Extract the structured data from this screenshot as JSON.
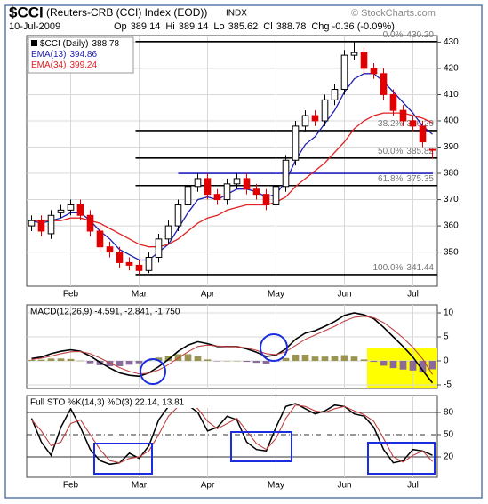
{
  "chart_data": [
    {
      "type": "candlestick",
      "title": "$CCI",
      "subtitle": "(Reuters-CRB (CCI) Index (EOD))",
      "exchange": "INDX",
      "source": "© StockCharts.com",
      "date": "10-Jul-2009",
      "ohlc_labels": [
        "Op",
        "Hi",
        "Lo",
        "Cl"
      ],
      "change": "Chg -0.36 (-0.09%)",
      "legend_name": "$CCI (Daily)",
      "categories": [
        null,
        null,
        null,
        null,
        "Feb",
        null,
        null,
        null,
        null,
        null,
        null,
        "Mar",
        null,
        null,
        null,
        null,
        null,
        null,
        "Apr",
        null,
        null,
        null,
        null,
        null,
        null,
        "May",
        null,
        null,
        null,
        null,
        null,
        null,
        "Jun",
        null,
        null,
        null,
        null,
        null,
        null,
        "Jul",
        null,
        null
      ],
      "open": [
        360,
        362,
        357,
        365,
        366,
        368,
        364,
        358,
        352,
        350,
        346,
        345,
        343,
        348,
        355,
        360,
        368,
        375,
        378,
        372,
        370,
        376,
        378,
        374,
        372,
        368,
        375,
        385,
        398,
        402,
        400,
        408,
        412,
        425,
        426,
        420,
        418,
        410,
        404,
        400,
        398,
        389.14
      ],
      "high": [
        364,
        364,
        366,
        368,
        370,
        370,
        366,
        360,
        354,
        352,
        348,
        347,
        350,
        357,
        362,
        370,
        377,
        380,
        380,
        374,
        378,
        380,
        380,
        376,
        374,
        377,
        387,
        400,
        404,
        404,
        410,
        414,
        427,
        430.2,
        428,
        422,
        420,
        412,
        406,
        402,
        400,
        389.14
      ],
      "low": [
        358,
        356,
        355,
        363,
        364,
        362,
        356,
        350,
        348,
        344,
        343,
        341.44,
        342,
        346,
        353,
        358,
        366,
        373,
        370,
        368,
        368,
        374,
        372,
        370,
        366,
        366,
        373,
        383,
        396,
        398,
        398,
        406,
        410,
        423,
        418,
        416,
        408,
        402,
        398,
        396,
        390,
        385.62
      ],
      "close": [
        362,
        358,
        364,
        366,
        368,
        364,
        358,
        352,
        350,
        346,
        345,
        343,
        348,
        355,
        360,
        368,
        375,
        378,
        372,
        370,
        376,
        378,
        374,
        372,
        368,
        375,
        385,
        398,
        402,
        400,
        408,
        412,
        425,
        426,
        420,
        418,
        410,
        404,
        400,
        398,
        392,
        388.78
      ],
      "up_color": "#000000",
      "down_color": "#e00000",
      "series": [
        {
          "name": "EMA(13)",
          "color": "#1f1fb0",
          "values": [
            362,
            361,
            362,
            363,
            365,
            365,
            362,
            358,
            355,
            351,
            349,
            347,
            347,
            350,
            353,
            359,
            365,
            370,
            371,
            370,
            372,
            374,
            374,
            373,
            371,
            372,
            377,
            385,
            391,
            394,
            399,
            404,
            411,
            416,
            418,
            418,
            415,
            411,
            407,
            403,
            398,
            394.86
          ]
        },
        {
          "name": "EMA(34)",
          "color": "#e02020",
          "values": [
            362,
            362,
            362,
            362,
            363,
            363,
            362,
            361,
            359,
            357,
            355,
            353,
            352,
            352,
            353,
            355,
            358,
            361,
            363,
            364,
            366,
            367,
            368,
            368,
            368,
            369,
            371,
            375,
            378,
            381,
            384,
            388,
            392,
            397,
            400,
            402,
            403,
            403,
            403,
            402,
            401,
            399.24
          ]
        }
      ],
      "fib_levels": [
        {
          "name": "0.0%",
          "value": 430.2,
          "label": "430.20"
        },
        {
          "name": "38.2%",
          "value": 396.29
        },
        {
          "name": "50.0%",
          "value": 385.82
        },
        {
          "name": "61.8%",
          "value": 375.35
        },
        {
          "name": "100.0%",
          "value": 341.44
        }
      ],
      "support_line": 380,
      "support_color": "#2020c0",
      "ylim": [
        337,
        432.5
      ],
      "yticks": [
        350,
        360,
        370,
        380,
        390,
        400,
        410,
        420,
        430
      ],
      "grid": true
    },
    {
      "type": "macd",
      "title": "MACD(12,26,9) -4.591, -2.841, -1.750",
      "series": [
        {
          "color": "#000000",
          "values": [
            0.5,
            0.8,
            1.5,
            2.0,
            2.3,
            2.0,
            1.0,
            -0.3,
            -1.5,
            -2.5,
            -3.0,
            -3.2,
            -2.5,
            -1.2,
            0.3,
            2.0,
            3.3,
            4.0,
            3.6,
            3.0,
            3.0,
            3.0,
            2.5,
            1.8,
            0.9,
            1.2,
            2.5,
            4.5,
            5.8,
            6.3,
            7.2,
            8.2,
            9.5,
            10.0,
            9.6,
            8.8,
            7.0,
            5.0,
            3.0,
            0.8,
            -2.0,
            -4.591
          ]
        },
        {
          "color": "#c04040",
          "values": [
            0.3,
            0.55,
            1.0,
            1.5,
            1.9,
            1.95,
            1.5,
            0.6,
            -0.4,
            -1.4,
            -2.2,
            -2.7,
            -2.6,
            -1.9,
            -0.8,
            0.6,
            1.9,
            3.0,
            3.3,
            3.1,
            3.0,
            3.0,
            2.7,
            2.2,
            1.5,
            1.3,
            1.9,
            3.2,
            4.5,
            5.4,
            6.3,
            7.2,
            8.3,
            9.1,
            9.3,
            9.0,
            8.0,
            6.5,
            4.8,
            2.8,
            0.4,
            -2.841
          ]
        }
      ],
      "histogram": {
        "color": "#9a9450",
        "negative_color": "#8a6a9a",
        "values": [
          0.2,
          0.25,
          0.5,
          0.5,
          0.4,
          0.05,
          -0.5,
          -0.9,
          -1.1,
          -1.1,
          -0.8,
          -0.5,
          0.1,
          0.7,
          1.1,
          1.4,
          1.4,
          1.0,
          0.3,
          -0.1,
          0,
          0,
          -0.2,
          -0.4,
          -0.6,
          -0.1,
          0.6,
          1.3,
          1.3,
          0.9,
          0.9,
          1.0,
          1.2,
          0.9,
          0.3,
          -0.2,
          -1.0,
          -1.5,
          -1.8,
          -2.0,
          -2.4,
          -1.75
        ]
      },
      "ylim": [
        -5.74,
        11.67
      ],
      "yticks": [
        10,
        5,
        0,
        -5
      ],
      "grid": true
    },
    {
      "type": "stochastic",
      "title": "Full STO %K(14,3) %D(3) 22.14, 13.81",
      "categories": [
        null,
        null,
        null,
        null,
        "Feb",
        null,
        null,
        null,
        null,
        null,
        null,
        "Mar",
        null,
        null,
        null,
        null,
        null,
        null,
        "Apr",
        null,
        null,
        null,
        null,
        null,
        null,
        "May",
        null,
        null,
        null,
        null,
        null,
        null,
        "Jun",
        null,
        null,
        null,
        null,
        null,
        null,
        "Jul",
        null,
        null
      ],
      "series": [
        {
          "color": "#000000",
          "values": [
            72,
            40,
            22,
            60,
            85,
            60,
            30,
            15,
            10,
            12,
            25,
            18,
            35,
            70,
            88,
            92,
            90,
            80,
            55,
            60,
            75,
            70,
            40,
            30,
            28,
            60,
            88,
            92,
            85,
            78,
            82,
            90,
            88,
            78,
            75,
            60,
            30,
            12,
            15,
            30,
            28,
            22.14
          ]
        },
        {
          "color": "#c04040",
          "values": [
            70,
            55,
            35,
            40,
            65,
            70,
            50,
            30,
            15,
            12,
            18,
            20,
            28,
            50,
            75,
            88,
            92,
            85,
            68,
            58,
            65,
            72,
            55,
            38,
            30,
            45,
            72,
            90,
            88,
            82,
            80,
            85,
            88,
            82,
            77,
            68,
            45,
            20,
            13,
            22,
            28,
            13.81
          ]
        }
      ],
      "ylim": [
        -7.6,
        102.8
      ],
      "yticks": [
        80,
        50,
        20
      ],
      "grid": true
    }
  ]
}
